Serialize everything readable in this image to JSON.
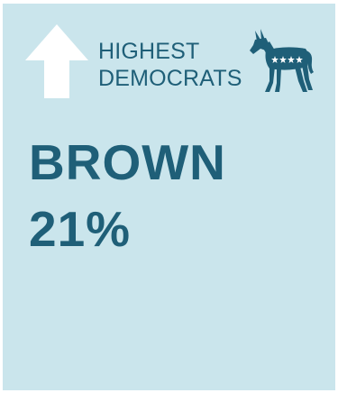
{
  "card": {
    "label_line1": "HIGHEST",
    "label_line2": "DEMOCRATS",
    "name": "BROWN",
    "percent": "21%"
  },
  "icons": {
    "arrow": "up-arrow-icon",
    "party": "democrat-donkey-icon"
  },
  "colors": {
    "background": "#cae5ec",
    "text": "#1f5f78",
    "arrow": "#ffffff",
    "donkey": "#1f5f78"
  }
}
